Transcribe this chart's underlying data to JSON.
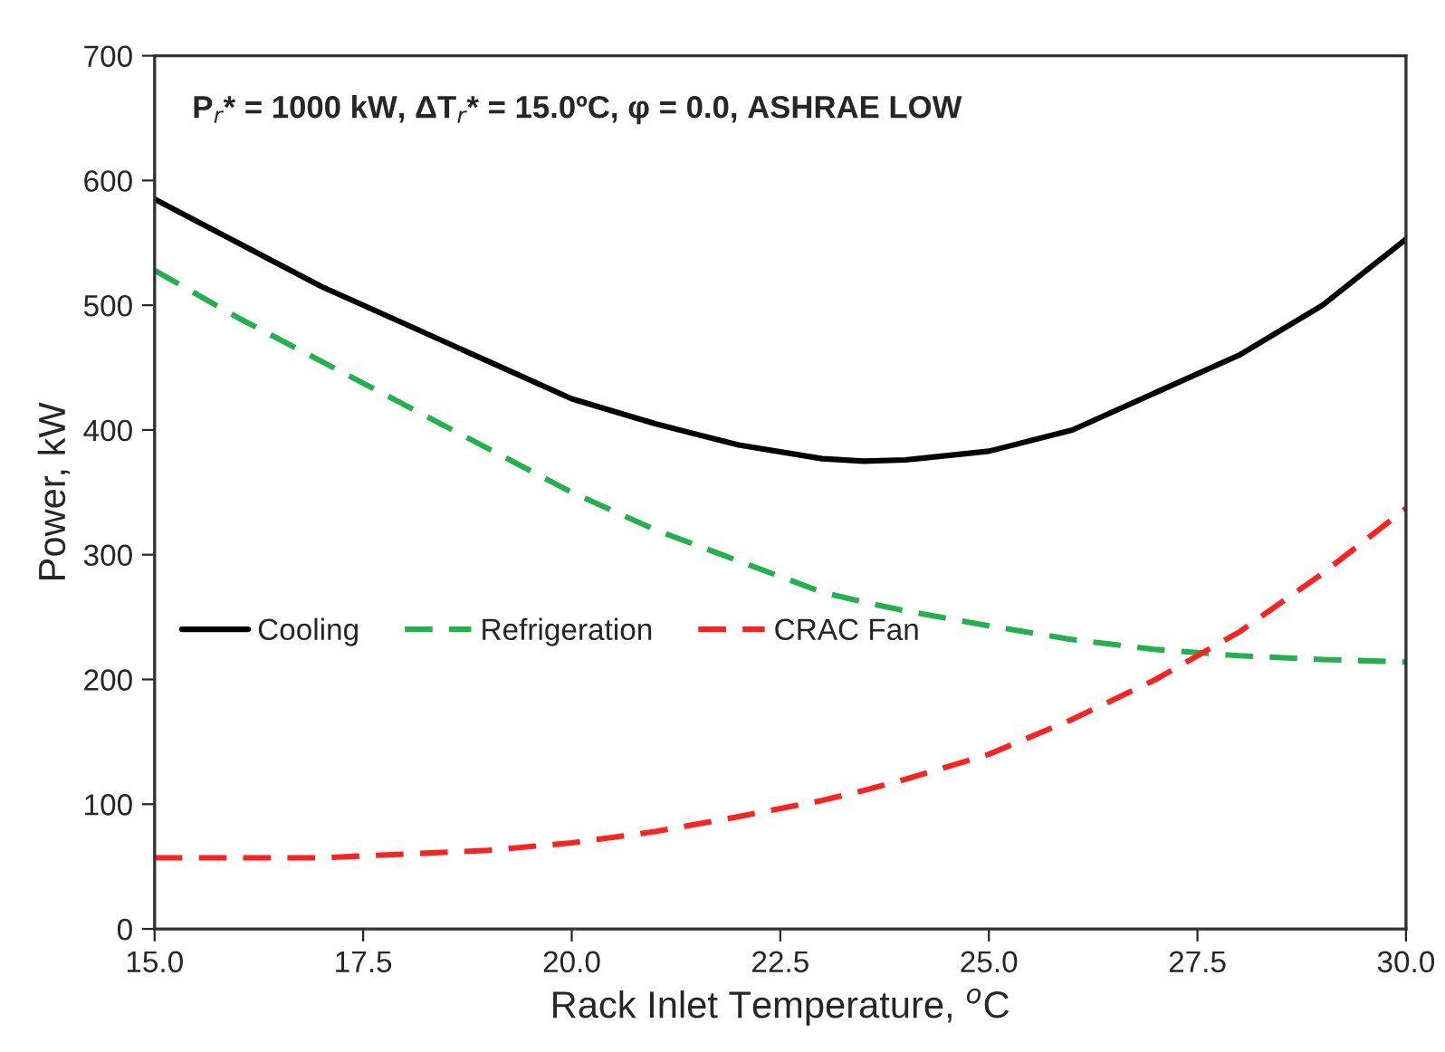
{
  "chart_data": {
    "type": "line",
    "xlabel": "Rack Inlet Temperature, $^{o}$C",
    "ylabel": "Power, kW",
    "annotations": [
      "P$_{r}$* = 1000 kW, ΔT$_{r}$* = 15.0ºC, φ = 0.0, ASHRAE LOW"
    ],
    "x": [
      15,
      16,
      17,
      18,
      19,
      20,
      21,
      22,
      23,
      23.5,
      24,
      25,
      26,
      27,
      28,
      29,
      30
    ],
    "series": [
      {
        "name": "Cooling",
        "color": "#000000",
        "line_style": "solid",
        "values": [
          585,
          550,
          515,
          485,
          455,
          425,
          405,
          388,
          377,
          375,
          376,
          383,
          400,
          430,
          460,
          500,
          553
        ]
      },
      {
        "name": "Refrigeration",
        "color": "#22b14c",
        "line_style": "dashed",
        "values": [
          528,
          490,
          455,
          420,
          385,
          350,
          320,
          295,
          270,
          262,
          255,
          243,
          232,
          224,
          219,
          216,
          214
        ]
      },
      {
        "name": "CRAC Fan",
        "color": "#ff2020",
        "line_style": "dashed",
        "values": [
          57,
          57,
          57,
          60,
          63,
          69,
          78,
          90,
          103,
          111,
          120,
          140,
          168,
          200,
          238,
          285,
          337
        ]
      }
    ],
    "xlim": [
      15,
      30
    ],
    "ylim": [
      0,
      700
    ],
    "xticks": [
      {
        "value": 15,
        "label": "15.0"
      },
      {
        "value": 17.5,
        "label": "17.5"
      },
      {
        "value": 20,
        "label": "20.0"
      },
      {
        "value": 22.5,
        "label": "22.5"
      },
      {
        "value": 25,
        "label": "25.0"
      },
      {
        "value": 27.5,
        "label": "27.5"
      },
      {
        "value": 30,
        "label": "30.0"
      }
    ],
    "yticks": [
      0,
      100,
      200,
      300,
      400,
      500,
      600,
      700
    ],
    "grid": false,
    "legend": "left",
    "marker": "none"
  }
}
